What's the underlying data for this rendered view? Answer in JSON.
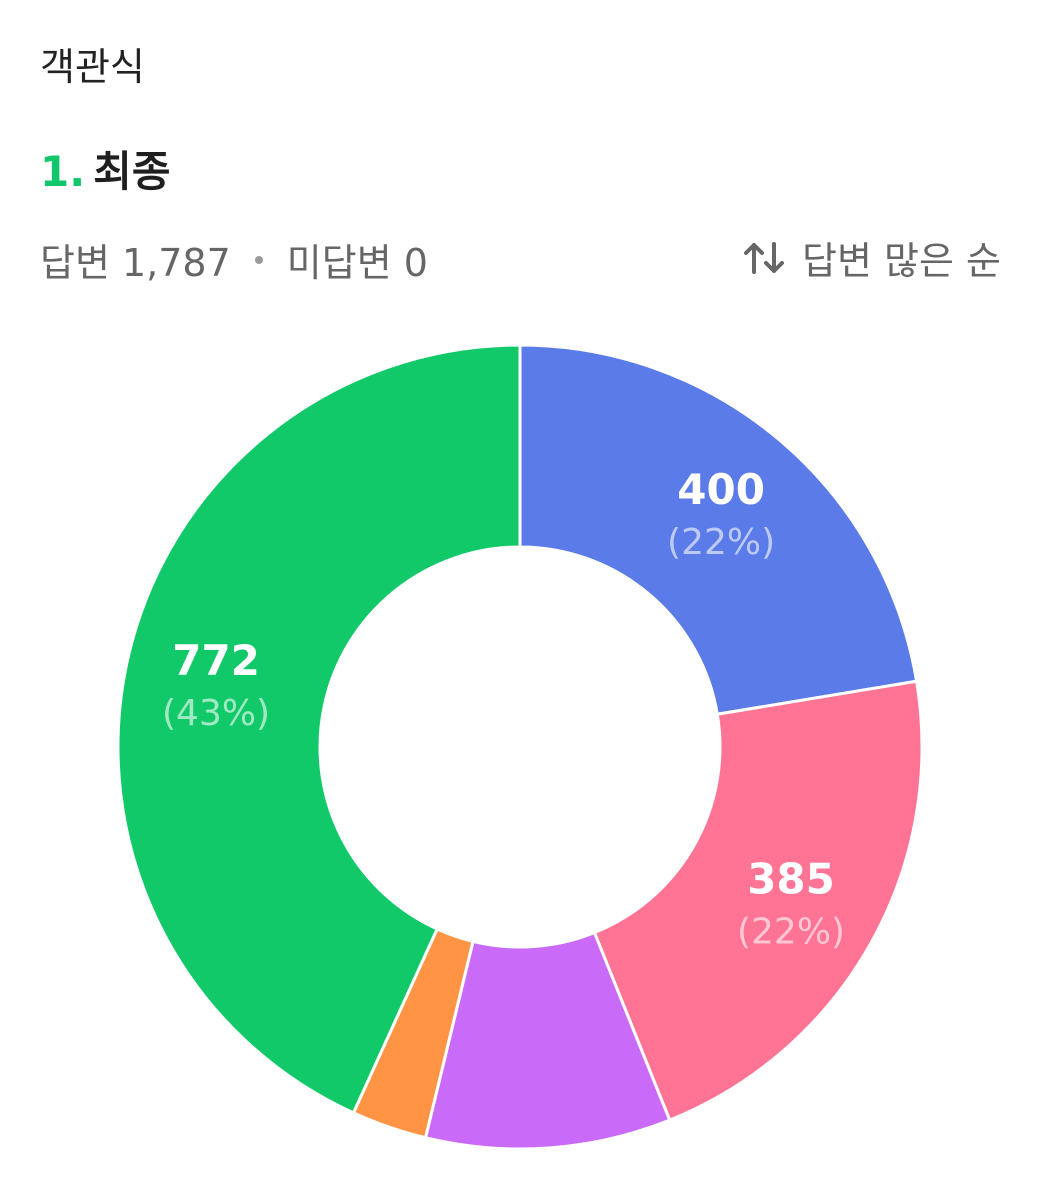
{
  "section": {
    "label": "객관식"
  },
  "question": {
    "number": "1.",
    "title": "최종"
  },
  "stats": {
    "answered": "답변 1,787",
    "unanswered": "미답변 0"
  },
  "sort": {
    "label": "답변 많은 순",
    "icon": "sort-arrows-icon"
  },
  "chart_data": {
    "type": "pie",
    "donut": true,
    "start_angle_deg": 0,
    "direction": "clockwise",
    "series": [
      {
        "value": 400,
        "percent_label": "(22%)",
        "color": "#5b7be9",
        "show_label": true
      },
      {
        "value": 385,
        "percent_label": "(22%)",
        "color": "#ff7394",
        "show_label": true
      },
      {
        "value": 176,
        "percent_label": "",
        "color": "#c96bf8",
        "show_label": false
      },
      {
        "value": 54,
        "percent_label": "",
        "color": "#ff9444",
        "show_label": false
      },
      {
        "value": 772,
        "percent_label": "(43%)",
        "color": "#12c96a",
        "show_label": true
      }
    ],
    "total": 1787
  }
}
